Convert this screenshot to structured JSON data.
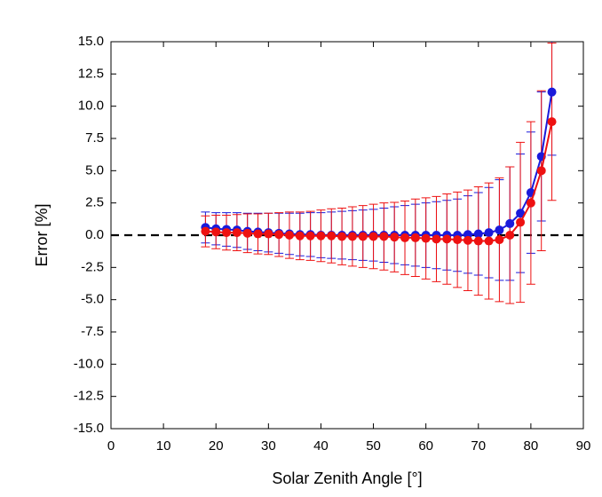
{
  "chart_data": {
    "type": "line",
    "x_label": "Solar Zenith Angle [°]",
    "y_label": "Error [%]",
    "x": [
      18,
      20,
      22,
      24,
      26,
      28,
      30,
      32,
      34,
      36,
      38,
      40,
      42,
      44,
      46,
      48,
      50,
      52,
      54,
      56,
      58,
      60,
      62,
      64,
      66,
      68,
      70,
      72,
      74,
      76,
      78,
      80,
      82,
      84
    ],
    "series": [
      {
        "color": "#1a1adb",
        "values": [
          0.6,
          0.5,
          0.45,
          0.4,
          0.3,
          0.25,
          0.2,
          0.15,
          0.1,
          0.05,
          0.05,
          0,
          0,
          0,
          0,
          0,
          0,
          0,
          0,
          0,
          0,
          0,
          0,
          0,
          0,
          0.05,
          0.1,
          0.2,
          0.4,
          0.9,
          1.7,
          3.3,
          6.1,
          11.1
        ],
        "errors": [
          1.2,
          1.25,
          1.3,
          1.35,
          1.4,
          1.45,
          1.5,
          1.55,
          1.6,
          1.65,
          1.7,
          1.75,
          1.8,
          1.85,
          1.9,
          1.95,
          2.0,
          2.1,
          2.2,
          2.3,
          2.4,
          2.5,
          2.6,
          2.7,
          2.8,
          3.0,
          3.2,
          3.5,
          3.9,
          4.4,
          4.6,
          4.7,
          5.0,
          4.9
        ]
      },
      {
        "color": "#ee1111",
        "values": [
          0.3,
          0.25,
          0.2,
          0.2,
          0.15,
          0.1,
          0.1,
          0.05,
          0,
          -0.05,
          -0.05,
          -0.05,
          -0.05,
          -0.1,
          -0.1,
          -0.1,
          -0.1,
          -0.1,
          -0.15,
          -0.2,
          -0.2,
          -0.25,
          -0.3,
          -0.3,
          -0.35,
          -0.4,
          -0.45,
          -0.45,
          -0.35,
          0,
          1.0,
          2.5,
          5.0,
          8.8
        ],
        "errors": [
          1.2,
          1.3,
          1.35,
          1.4,
          1.5,
          1.55,
          1.6,
          1.7,
          1.8,
          1.85,
          1.9,
          2.0,
          2.1,
          2.2,
          2.3,
          2.4,
          2.5,
          2.6,
          2.7,
          2.85,
          3.0,
          3.15,
          3.3,
          3.5,
          3.7,
          3.9,
          4.2,
          4.5,
          4.8,
          5.3,
          6.2,
          6.3,
          6.2,
          6.1
        ]
      }
    ],
    "reference_line": 0,
    "xlim": [
      0,
      90
    ],
    "xticks": [
      0,
      10,
      20,
      30,
      40,
      50,
      60,
      70,
      80,
      90
    ],
    "ylim": [
      -15,
      15
    ],
    "yticks": [
      {
        "value": -15,
        "label": "-15.0"
      },
      -12.5,
      {
        "value": -10,
        "label": "-10.0"
      },
      -7.5,
      {
        "value": -5,
        "label": "-5.0"
      },
      -2.5,
      {
        "value": 0,
        "label": "0.0"
      },
      2.5,
      {
        "value": 5,
        "label": "5.0"
      },
      7.5,
      {
        "value": 10,
        "label": "10.0"
      },
      12.5,
      {
        "value": 15,
        "label": "15.0"
      }
    ]
  }
}
